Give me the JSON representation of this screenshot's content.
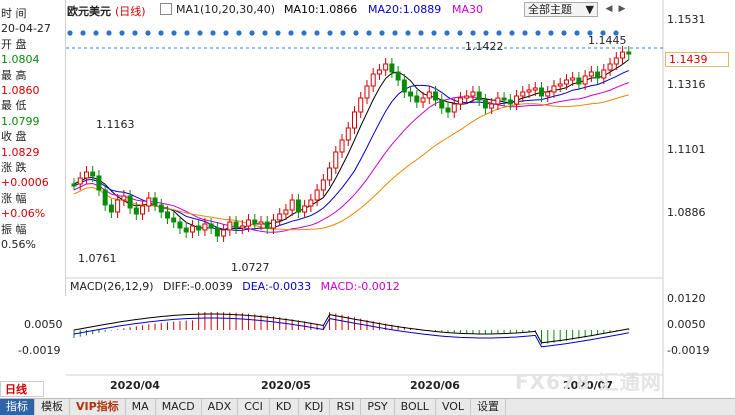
{
  "info_panel": {
    "time_label": "时 间",
    "date": "20-04-27",
    "open_label": "开 盘",
    "open": "1.0804",
    "high_label": "最 高",
    "high": "1.0860",
    "low_label": "最 低",
    "low": "1.0799",
    "close_label": "收 盘",
    "close": "1.0829",
    "change_label": "涨 跌",
    "change": "+0.0006",
    "pct_label": "涨 幅",
    "pct": "+0.06%",
    "amp_label": "振 幅",
    "amp": "0.56%"
  },
  "header": {
    "symbol": "欧元美元",
    "period": "(日线)",
    "ma_label": "MA1(10,20,30,40)",
    "ma10": "MA10:1.0866",
    "ma20": "MA20:1.0889",
    "ma30": "MA30",
    "theme_button": "全部主题",
    "theme_arrow": "▼",
    "scroll_left": "◀",
    "scroll_right": "▶"
  },
  "macd_header": {
    "label": "MACD(26,12,9)",
    "diff": "DIFF:-0.0039",
    "dea": "DEA:-0.0033",
    "macd": "MACD:-0.0012"
  },
  "annotations": {
    "peak1": "1.1422",
    "peak2": "1.1445",
    "high_early": "1.1163",
    "low_early": "1.0761",
    "low_mid": "1.0727",
    "last_price": "1.1439"
  },
  "price_axis": [
    "1.1531",
    "1.1316",
    "1.1101",
    "1.0886"
  ],
  "macd_axis": [
    "0.0120",
    "0.0050",
    "-0.0019"
  ],
  "macd_axis_left": [
    "0.0050",
    "-0.0019"
  ],
  "date_axis": [
    "2020/04",
    "2020/05",
    "2020/06",
    "2020/07"
  ],
  "period_tag": "日线",
  "watermark": "FX678 汇通网",
  "tabs": [
    "指标",
    "模板",
    "VIP指标",
    "MA",
    "MACD",
    "ADX",
    "CCI",
    "KD",
    "KDJ",
    "RSI",
    "PSY",
    "BOLL",
    "VOL",
    "设置"
  ],
  "colors": {
    "up": "#d40000",
    "down": "#0a8a0a",
    "ma10": "#000000",
    "ma20": "#0000cc",
    "ma30": "#cc00cc",
    "ma40": "#ee8800"
  }
}
